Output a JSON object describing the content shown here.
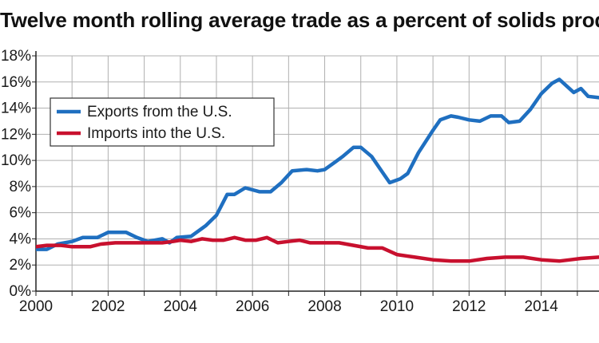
{
  "chart_data": {
    "type": "line",
    "title": "Twelve month rolling average trade as a percent of solids production",
    "xlabel": "",
    "ylabel": "",
    "xlim": [
      2000,
      2015.6
    ],
    "ylim": [
      0,
      18
    ],
    "x_ticks": [
      2000,
      2002,
      2004,
      2006,
      2008,
      2010,
      2012,
      2014
    ],
    "x_tick_labels": [
      "2000",
      "2002",
      "2004",
      "2006",
      "2008",
      "2010",
      "2012",
      "2014"
    ],
    "y_ticks": [
      0,
      2,
      4,
      6,
      8,
      10,
      12,
      14,
      16,
      18
    ],
    "y_tick_labels": [
      "0%",
      "2%",
      "4%",
      "6%",
      "8%",
      "10%",
      "12%",
      "14%",
      "16%",
      "18%"
    ],
    "grid": true,
    "legend_position": "upper-left",
    "series": [
      {
        "name": "Exports from the U.S.",
        "color": "#1f6fc0",
        "points": [
          [
            2000.0,
            3.2
          ],
          [
            2000.3,
            3.2
          ],
          [
            2000.6,
            3.6
          ],
          [
            2001.0,
            3.8
          ],
          [
            2001.3,
            4.1
          ],
          [
            2001.7,
            4.1
          ],
          [
            2002.0,
            4.5
          ],
          [
            2002.5,
            4.5
          ],
          [
            2002.8,
            4.1
          ],
          [
            2003.1,
            3.8
          ],
          [
            2003.5,
            4.0
          ],
          [
            2003.7,
            3.7
          ],
          [
            2003.9,
            4.1
          ],
          [
            2004.3,
            4.2
          ],
          [
            2004.7,
            5.0
          ],
          [
            2005.0,
            5.8
          ],
          [
            2005.3,
            7.4
          ],
          [
            2005.5,
            7.4
          ],
          [
            2005.8,
            7.9
          ],
          [
            2006.2,
            7.6
          ],
          [
            2006.5,
            7.6
          ],
          [
            2006.8,
            8.3
          ],
          [
            2007.1,
            9.2
          ],
          [
            2007.5,
            9.3
          ],
          [
            2007.8,
            9.2
          ],
          [
            2008.0,
            9.3
          ],
          [
            2008.3,
            9.9
          ],
          [
            2008.5,
            10.3
          ],
          [
            2008.8,
            11.0
          ],
          [
            2009.0,
            11.0
          ],
          [
            2009.3,
            10.3
          ],
          [
            2009.6,
            9.1
          ],
          [
            2009.8,
            8.3
          ],
          [
            2010.1,
            8.6
          ],
          [
            2010.3,
            9.0
          ],
          [
            2010.6,
            10.6
          ],
          [
            2011.0,
            12.3
          ],
          [
            2011.2,
            13.1
          ],
          [
            2011.5,
            13.4
          ],
          [
            2011.7,
            13.3
          ],
          [
            2012.0,
            13.1
          ],
          [
            2012.3,
            13.0
          ],
          [
            2012.6,
            13.4
          ],
          [
            2012.9,
            13.4
          ],
          [
            2013.1,
            12.9
          ],
          [
            2013.4,
            13.0
          ],
          [
            2013.7,
            13.9
          ],
          [
            2014.0,
            15.1
          ],
          [
            2014.3,
            15.9
          ],
          [
            2014.5,
            16.2
          ],
          [
            2014.7,
            15.7
          ],
          [
            2014.9,
            15.2
          ],
          [
            2015.1,
            15.5
          ],
          [
            2015.3,
            14.9
          ],
          [
            2015.6,
            14.8
          ]
        ]
      },
      {
        "name": "Imports into the U.S.",
        "color": "#c8102e",
        "points": [
          [
            2000.0,
            3.4
          ],
          [
            2000.3,
            3.5
          ],
          [
            2000.7,
            3.5
          ],
          [
            2001.0,
            3.4
          ],
          [
            2001.5,
            3.4
          ],
          [
            2001.8,
            3.6
          ],
          [
            2002.2,
            3.7
          ],
          [
            2002.6,
            3.7
          ],
          [
            2003.0,
            3.7
          ],
          [
            2003.5,
            3.7
          ],
          [
            2003.8,
            3.8
          ],
          [
            2004.0,
            3.9
          ],
          [
            2004.3,
            3.8
          ],
          [
            2004.6,
            4.0
          ],
          [
            2004.9,
            3.9
          ],
          [
            2005.2,
            3.9
          ],
          [
            2005.5,
            4.1
          ],
          [
            2005.8,
            3.9
          ],
          [
            2006.1,
            3.9
          ],
          [
            2006.4,
            4.1
          ],
          [
            2006.7,
            3.7
          ],
          [
            2007.0,
            3.8
          ],
          [
            2007.3,
            3.9
          ],
          [
            2007.6,
            3.7
          ],
          [
            2008.0,
            3.7
          ],
          [
            2008.4,
            3.7
          ],
          [
            2008.8,
            3.5
          ],
          [
            2009.2,
            3.3
          ],
          [
            2009.6,
            3.3
          ],
          [
            2010.0,
            2.8
          ],
          [
            2010.5,
            2.6
          ],
          [
            2011.0,
            2.4
          ],
          [
            2011.5,
            2.3
          ],
          [
            2012.0,
            2.3
          ],
          [
            2012.5,
            2.5
          ],
          [
            2013.0,
            2.6
          ],
          [
            2013.5,
            2.6
          ],
          [
            2014.0,
            2.4
          ],
          [
            2014.5,
            2.3
          ],
          [
            2014.8,
            2.4
          ],
          [
            2015.1,
            2.5
          ],
          [
            2015.6,
            2.6
          ]
        ]
      }
    ]
  }
}
